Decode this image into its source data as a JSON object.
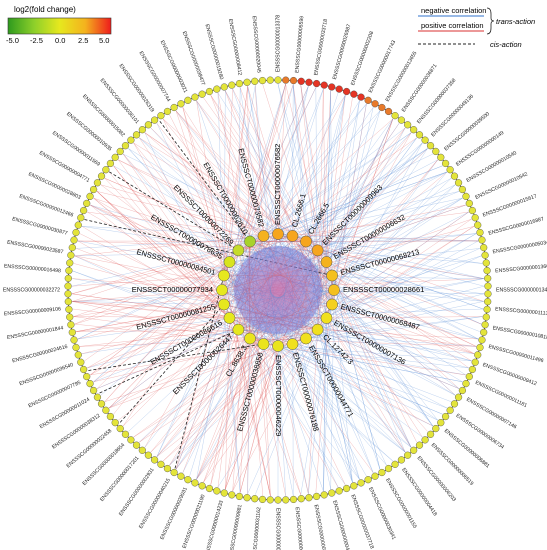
{
  "legend": {
    "title": "log2(fold change)",
    "ticks": [
      "-5.0",
      "-2.5",
      "0.0",
      "2.5",
      "5.0"
    ],
    "gradient_colors": [
      "#2e9a1e",
      "#8ccf2a",
      "#e6e81e",
      "#f4b21e",
      "#ee1c1c"
    ]
  },
  "connection_legend": {
    "negative_label": "negative correlation",
    "positive_label": "positive correlation",
    "trans_label": "trans-action",
    "cis_label": "cis-action",
    "negative_color": "#5b8fd8",
    "positive_color": "#e05a5a",
    "cis_color": "#222222"
  },
  "inner_labels": [
    "CL.2666.1",
    "CL.2666.5",
    "ENSSSCT00000009963",
    "ENSSSCT00000006632",
    "ENSSSCT00000068213",
    "ENSSSCT00000028661",
    "ENSSSCT00000068487",
    "ENSSSCT00000007136",
    "CL.12742.3",
    "ENSSSCT00000044771",
    "ENSSSCT00000076188",
    "ENSSSCT00000046229",
    "ENSSSCT00000038858",
    "CL.8638.3",
    "ENSSSCT00000026447",
    "ENSSSCT00000086616",
    "ENSSSCT00000081255",
    "ENSSSCT00000077934",
    "ENSSSCT00000084501",
    "ENSSSCT00000078635",
    "ENSSSCT00000072269",
    "ENSSSCT00000062610",
    "ENSSSCT00000073582",
    "ENSSSCT00000076582"
  ],
  "outer_labels": [
    "ENSSSCG00000013655",
    "ENSSSCG00000036871",
    "ENSSSCG00000037358",
    "ENSSSCG00000049136",
    "ENSSSCG00000039500",
    "ENSSSCG00000000149",
    "ENSSSCG00000010540",
    "ENSSSCG00000010542",
    "ENSSSCG00000015617",
    "ENSSSCG00000016887",
    "ENSSSCG00000005034",
    "ENSSSCG00000013669",
    "ENSSSCG00000013451",
    "ENSSSCG00000011132",
    "ENSSSCG00000010818",
    "ENSSSCG00000011496",
    "ENSSSCG00000009412",
    "ENSSSCG00000011181",
    "ENSSSCG00000007146",
    "ENSSSCG00000006734",
    "ENSSSCG00000006881",
    "ENSSSCG00000006519",
    "ENSSSCG00000006203",
    "ENSSSCG00000004418",
    "ENSSSCG00000001155",
    "ENSSSCG00000030341",
    "ENSSSCG00000037718",
    "ENSSSCG00000000418",
    "ENSSSCG00000003365",
    "ENSSSCG00000004447",
    "ENSSSCG00000006432",
    "ENSSSCG00000031162",
    "ENSSSCG00000009881",
    "ENSSSCG00000014233",
    "ENSSSCG00000021190",
    "ENSSSCG00000029031",
    "ENSSSCG00000040215",
    "ENSSSCG00000002931",
    "ENSSSCG00000017201",
    "ENSSSCG00000018654",
    "ENSSSCG00000022458",
    "ENSSSCG00000038312",
    "ENSSSCG00000011024",
    "ENSSSCG00000007795",
    "ENSSSCG00000036540",
    "ENSSSCG00000024616",
    "ENSSSCG00000001844",
    "ENSSSCG00000009106",
    "ENSSSCG00000032272",
    "ENSSSCG00000016498",
    "ENSSSCG00000023587",
    "ENSSSCG00000030877",
    "ENSSSCG00000012466",
    "ENSSSCG00000028803",
    "ENSSSCG00000004771",
    "ENSSSCG00000011569",
    "ENSSSCG00000010935",
    "ENSSSCG00000015082",
    "ENSSSCG00000036101",
    "ENSSSCG00000026319",
    "ENSSSCG00000007744",
    "ENSSSCG00000003021",
    "ENSSSCG00000038477",
    "ENSSSCG00000019280",
    "ENSSSCG00000008412",
    "ENSSSCG00000020045",
    "ENSSSCG00000013378",
    "ENSSSCG00000005599",
    "ENSSSCG00000033718",
    "ENSSSCG00000026987",
    "ENSSSCG00000002208",
    "ENSSSCG00000017743"
  ]
}
